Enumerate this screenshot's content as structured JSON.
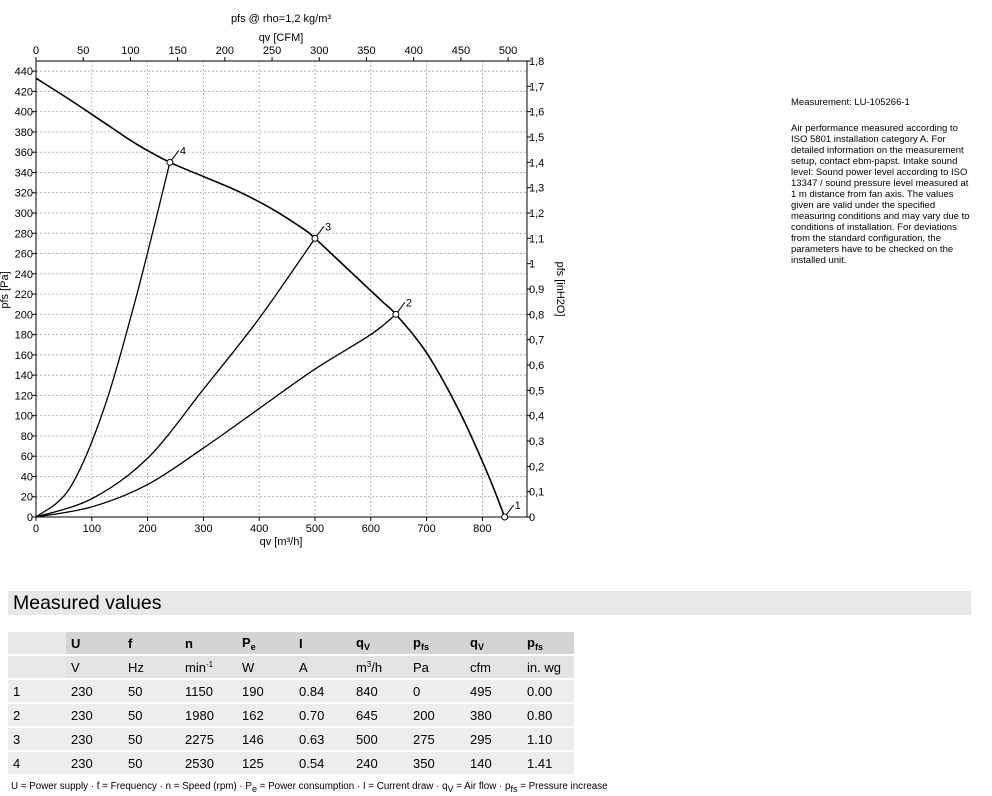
{
  "chart_data": {
    "type": "line",
    "title": "pfs @ rho=1,2 kg/m³",
    "xlabel": "qv [m³/h]",
    "x2label": "qv [CFM]",
    "ylabel": "pfs [Pa]",
    "y2label": "pfs [inH2O]",
    "xlim": [
      0,
      880
    ],
    "ylim": [
      0,
      450
    ],
    "x2lim": [
      0,
      520
    ],
    "y2lim": [
      0,
      1.8
    ],
    "x_ticks": [
      0,
      100,
      200,
      300,
      400,
      500,
      600,
      700,
      800
    ],
    "x_tick_labels": [
      "0",
      "100",
      "200",
      "300",
      "400",
      "500",
      "600",
      "700",
      "800"
    ],
    "x2_ticks": [
      0,
      50,
      100,
      150,
      200,
      250,
      300,
      350,
      400,
      450,
      500
    ],
    "x2_tick_labels": [
      "0",
      "50",
      "100",
      "150",
      "200",
      "250",
      "300",
      "350",
      "400",
      "450",
      "500"
    ],
    "y_ticks": [
      0,
      20,
      40,
      60,
      80,
      100,
      120,
      140,
      160,
      180,
      200,
      220,
      240,
      260,
      280,
      300,
      320,
      340,
      360,
      380,
      400,
      420,
      440
    ],
    "y_tick_labels": [
      "0",
      "20",
      "40",
      "60",
      "80",
      "100",
      "120",
      "140",
      "160",
      "180",
      "200",
      "220",
      "240",
      "260",
      "280",
      "300",
      "320",
      "340",
      "360",
      "380",
      "400",
      "420",
      "440"
    ],
    "y2_ticks": [
      0,
      0.1,
      0.2,
      0.3,
      0.4,
      0.5,
      0.6,
      0.7,
      0.8,
      0.9,
      1.0,
      1.1,
      1.2,
      1.3,
      1.4,
      1.5,
      1.6,
      1.7,
      1.8
    ],
    "y2_tick_labels": [
      "0",
      "0,1",
      "0,2",
      "0,3",
      "0,4",
      "0,5",
      "0,6",
      "0,7",
      "0,8",
      "0,9",
      "1",
      "1,1",
      "1,2",
      "1,3",
      "1,4",
      "1,5",
      "1,6",
      "1,7",
      "1,8"
    ],
    "grid": true,
    "series": [
      {
        "x": [
          0,
          60,
          120,
          180,
          240,
          300,
          360,
          420,
          480,
          500,
          560,
          620,
          645,
          700,
          760,
          810,
          840
        ],
        "y": [
          433,
          412,
          390,
          368,
          350,
          336,
          322,
          305,
          284,
          275,
          244,
          213,
          200,
          162,
          103,
          42,
          0
        ]
      },
      {
        "x": [
          0,
          100,
          200,
          300,
          400,
          500,
          600,
          645
        ],
        "y": [
          0,
          10,
          32,
          68,
          107,
          146,
          180,
          200
        ]
      },
      {
        "x": [
          0,
          100,
          200,
          300,
          400,
          500
        ],
        "y": [
          0,
          18,
          58,
          126,
          196,
          275
        ]
      },
      {
        "x": [
          0,
          60,
          120,
          180,
          240
        ],
        "y": [
          0,
          28,
          104,
          218,
          350
        ]
      }
    ],
    "points": [
      {
        "label": "1",
        "x": 840,
        "y": 0
      },
      {
        "label": "2",
        "x": 645,
        "y": 200
      },
      {
        "label": "3",
        "x": 500,
        "y": 275
      },
      {
        "label": "4",
        "x": 240,
        "y": 350
      }
    ]
  },
  "notes": {
    "title": "Measurement: LU-105266-1",
    "body": "Air performance measured according to ISO 5801 installation category A. For detailed information on the measurement setup, contact ebm-papst. Intake sound level: Sound power level according to ISO 13347 / sound pressure level measured at 1 m distance from fan axis. The values given are valid under the specified measuring conditions and may vary due to conditions of installation. For deviations from the standard configuration, the parameters have to be checked on the installed unit."
  },
  "table": {
    "title": "Measured values",
    "headers": [
      {
        "main": "U",
        "sub": ""
      },
      {
        "main": "f",
        "sub": ""
      },
      {
        "main": "n",
        "sub": ""
      },
      {
        "main": "P",
        "sub": "e"
      },
      {
        "main": "I",
        "sub": ""
      },
      {
        "main": "q",
        "sub": "V"
      },
      {
        "main": "p",
        "sub": "fs"
      },
      {
        "main": "q",
        "sub": "V"
      },
      {
        "main": "p",
        "sub": "fs"
      }
    ],
    "units": [
      {
        "main": "V",
        "sup": ""
      },
      {
        "main": "Hz",
        "sup": ""
      },
      {
        "main": "min",
        "sup": "-1"
      },
      {
        "main": "W",
        "sup": ""
      },
      {
        "main": "A",
        "sup": ""
      },
      {
        "main": "m",
        "sup": "3",
        "tail": "/h"
      },
      {
        "main": "Pa",
        "sup": ""
      },
      {
        "main": "cfm",
        "sup": ""
      },
      {
        "main": "in. wg",
        "sup": ""
      }
    ],
    "rows": [
      [
        "1",
        "230",
        "50",
        "1150",
        "190",
        "0.84",
        "840",
        "0",
        "495",
        "0.00"
      ],
      [
        "2",
        "230",
        "50",
        "1980",
        "162",
        "0.70",
        "645",
        "200",
        "380",
        "0.80"
      ],
      [
        "3",
        "230",
        "50",
        "2275",
        "146",
        "0.63",
        "500",
        "275",
        "295",
        "1.10"
      ],
      [
        "4",
        "230",
        "50",
        "2530",
        "125",
        "0.54",
        "240",
        "350",
        "140",
        "1.41"
      ]
    ]
  },
  "footnote": {
    "parts": [
      {
        "t": "U = Power supply · f = Frequency · n = Speed (rpm) · P"
      },
      {
        "sub": "e"
      },
      {
        "t": " = Power consumption · I = Current draw · q"
      },
      {
        "sub": "V"
      },
      {
        "t": " = Air flow · p"
      },
      {
        "sub": "fs"
      },
      {
        "t": " = Pressure increase"
      }
    ]
  }
}
